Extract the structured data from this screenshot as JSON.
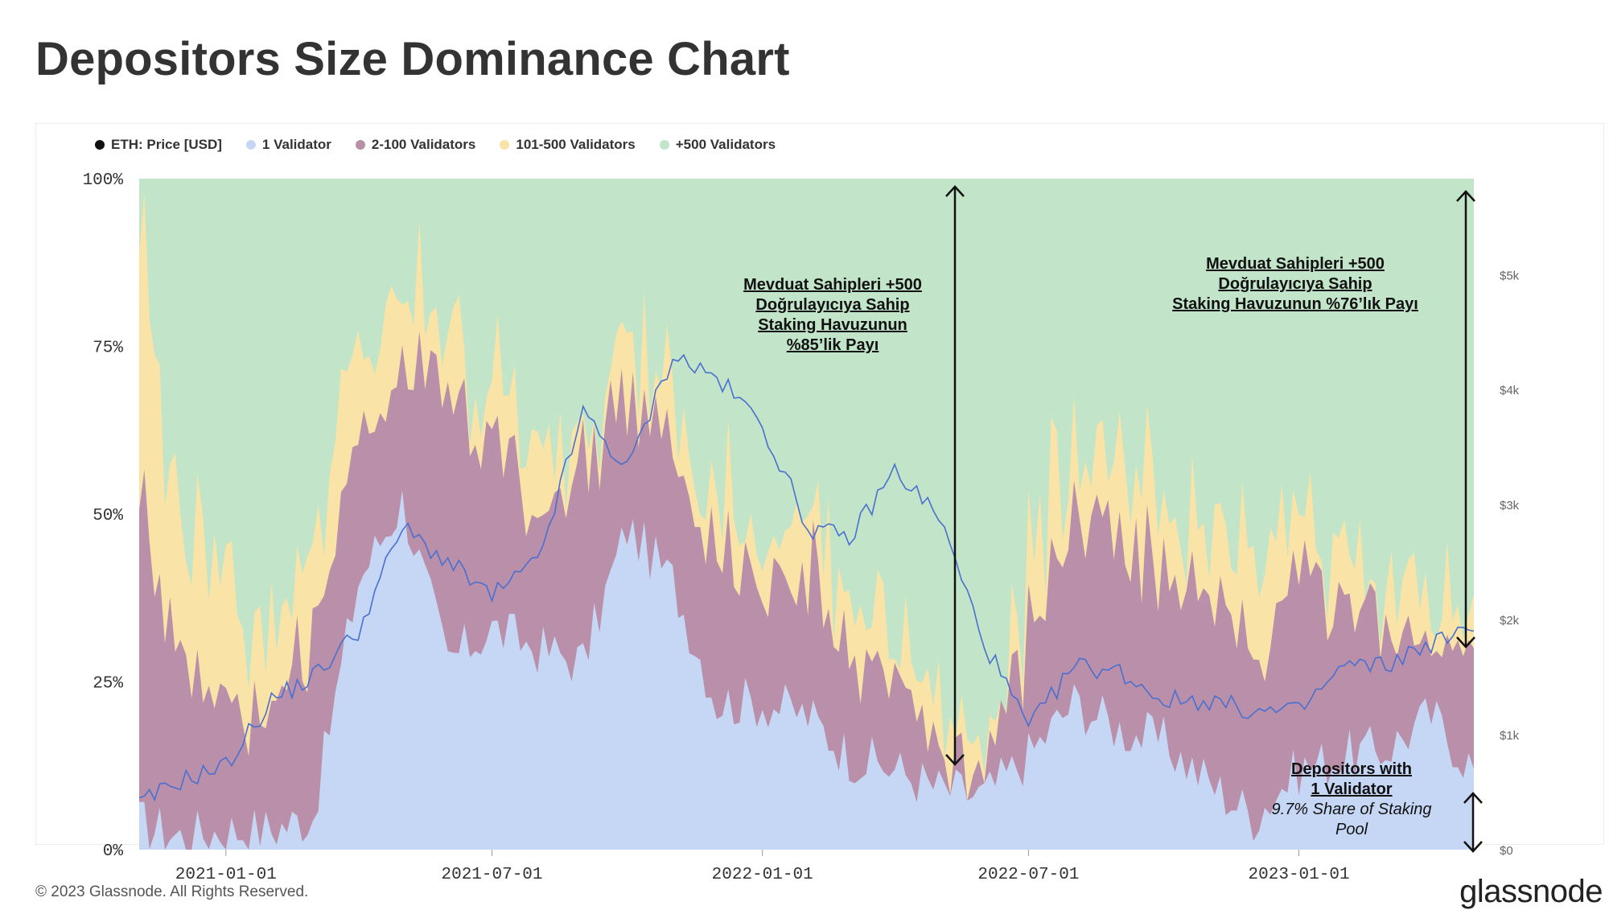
{
  "title": "Depositors Size Dominance Chart",
  "footer": "© 2023 Glassnode. All Rights Reserved.",
  "brand": "glassnode",
  "legend": [
    {
      "label": "ETH: Price [USD]",
      "color": "#111111"
    },
    {
      "label": "1 Validator",
      "color": "#c6d7f5"
    },
    {
      "label": "2-100 Validators",
      "color": "#b98fa9"
    },
    {
      "label": "101-500 Validators",
      "color": "#f9e3a6"
    },
    {
      "label": "+500 Validators",
      "color": "#c2e4c9"
    }
  ],
  "annotations": {
    "left": {
      "line1": "Mevduat Sahipleri +500",
      "line2": "Doğrulayıcıya Sahip",
      "line3": "Staking Havuzunun",
      "line4": "%85’lik Payı"
    },
    "right": {
      "line1": "Mevduat Sahipleri +500",
      "line2": "Doğrulayıcıya Sahip",
      "line3": "Staking Havuzunun %76’lık Payı"
    },
    "bottom": {
      "line1": "Depositors with",
      "line2": "1 Validator",
      "line3": "9.7% Share of Staking",
      "line4": "Pool"
    }
  },
  "chart_data": {
    "type": "area",
    "stacked": true,
    "percent": true,
    "title": "Depositors Size Dominance Chart",
    "y_left": {
      "ticks": [
        "0%",
        "25%",
        "50%",
        "75%",
        "100%"
      ],
      "range": [
        0,
        100
      ]
    },
    "y_right": {
      "ticks": [
        "$0",
        "$1k",
        "$2k",
        "$3k",
        "$4k",
        "$5k"
      ],
      "range": [
        0,
        5000
      ],
      "unit": "USD"
    },
    "x_ticks": [
      "2021-01-01",
      "2021-07-01",
      "2022-01-01",
      "2022-07-01",
      "2023-01-01"
    ],
    "x_range": [
      "2020-11-03",
      "2023-04-30"
    ],
    "grid": false,
    "legend_position": "top-left",
    "colors": {
      "one": "#c6d7f5",
      "two_hundred": "#b98fa9",
      "five_hundred": "#f9e3a6",
      "over_500": "#c2e4c9",
      "price": "#4a6fd1"
    },
    "dates": [
      "2020-11-03",
      "2020-12-01",
      "2021-01-01",
      "2021-02-01",
      "2021-03-01",
      "2021-04-01",
      "2021-05-01",
      "2021-06-01",
      "2021-07-01",
      "2021-08-01",
      "2021-09-01",
      "2021-10-01",
      "2021-11-01",
      "2021-12-01",
      "2022-01-01",
      "2022-02-01",
      "2022-03-01",
      "2022-04-01",
      "2022-05-01",
      "2022-06-01",
      "2022-07-01",
      "2022-08-01",
      "2022-09-01",
      "2022-10-01",
      "2022-11-01",
      "2022-12-01",
      "2023-01-01",
      "2023-02-01",
      "2023-03-01",
      "2023-04-01",
      "2023-04-30"
    ],
    "series": [
      {
        "name": "1 Validator",
        "key": "one",
        "values": [
          4,
          2,
          3,
          3,
          5,
          40,
          52,
          28,
          33,
          30,
          28,
          48,
          40,
          22,
          22,
          20,
          14,
          12,
          9,
          8,
          14,
          22,
          18,
          16,
          10,
          5,
          12,
          14,
          15,
          20,
          12
        ]
      },
      {
        "name": "2-100 Validators",
        "key": "two_hundred",
        "values": [
          48,
          28,
          20,
          18,
          28,
          20,
          22,
          40,
          28,
          18,
          28,
          22,
          18,
          24,
          18,
          22,
          18,
          12,
          5,
          3,
          18,
          28,
          28,
          24,
          30,
          22,
          28,
          25,
          18,
          12,
          18
        ]
      },
      {
        "name": "101-500 Validators",
        "key": "five_hundred",
        "values": [
          40,
          20,
          20,
          12,
          14,
          12,
          10,
          10,
          8,
          8,
          8,
          10,
          6,
          6,
          8,
          10,
          8,
          6,
          6,
          4,
          10,
          12,
          8,
          8,
          10,
          12,
          10,
          8,
          6,
          6,
          8
        ]
      },
      {
        "name": "+500 Validators",
        "key": "over_500",
        "values": [
          8,
          50,
          57,
          67,
          53,
          28,
          16,
          22,
          31,
          44,
          36,
          20,
          36,
          48,
          52,
          48,
          60,
          70,
          80,
          85,
          58,
          38,
          46,
          52,
          50,
          61,
          50,
          53,
          61,
          62,
          62
        ]
      },
      {
        "name": "ETH: Price [USD]",
        "key": "price",
        "axis": "right",
        "values": [
          390,
          600,
          730,
          1300,
          1500,
          1900,
          2800,
          2500,
          2200,
          2500,
          3800,
          3300,
          4300,
          4100,
          3700,
          2800,
          2700,
          3300,
          2900,
          1800,
          1050,
          1600,
          1550,
          1300,
          1300,
          1200,
          1200,
          1600,
          1600,
          1800,
          1900
        ]
      }
    ]
  }
}
